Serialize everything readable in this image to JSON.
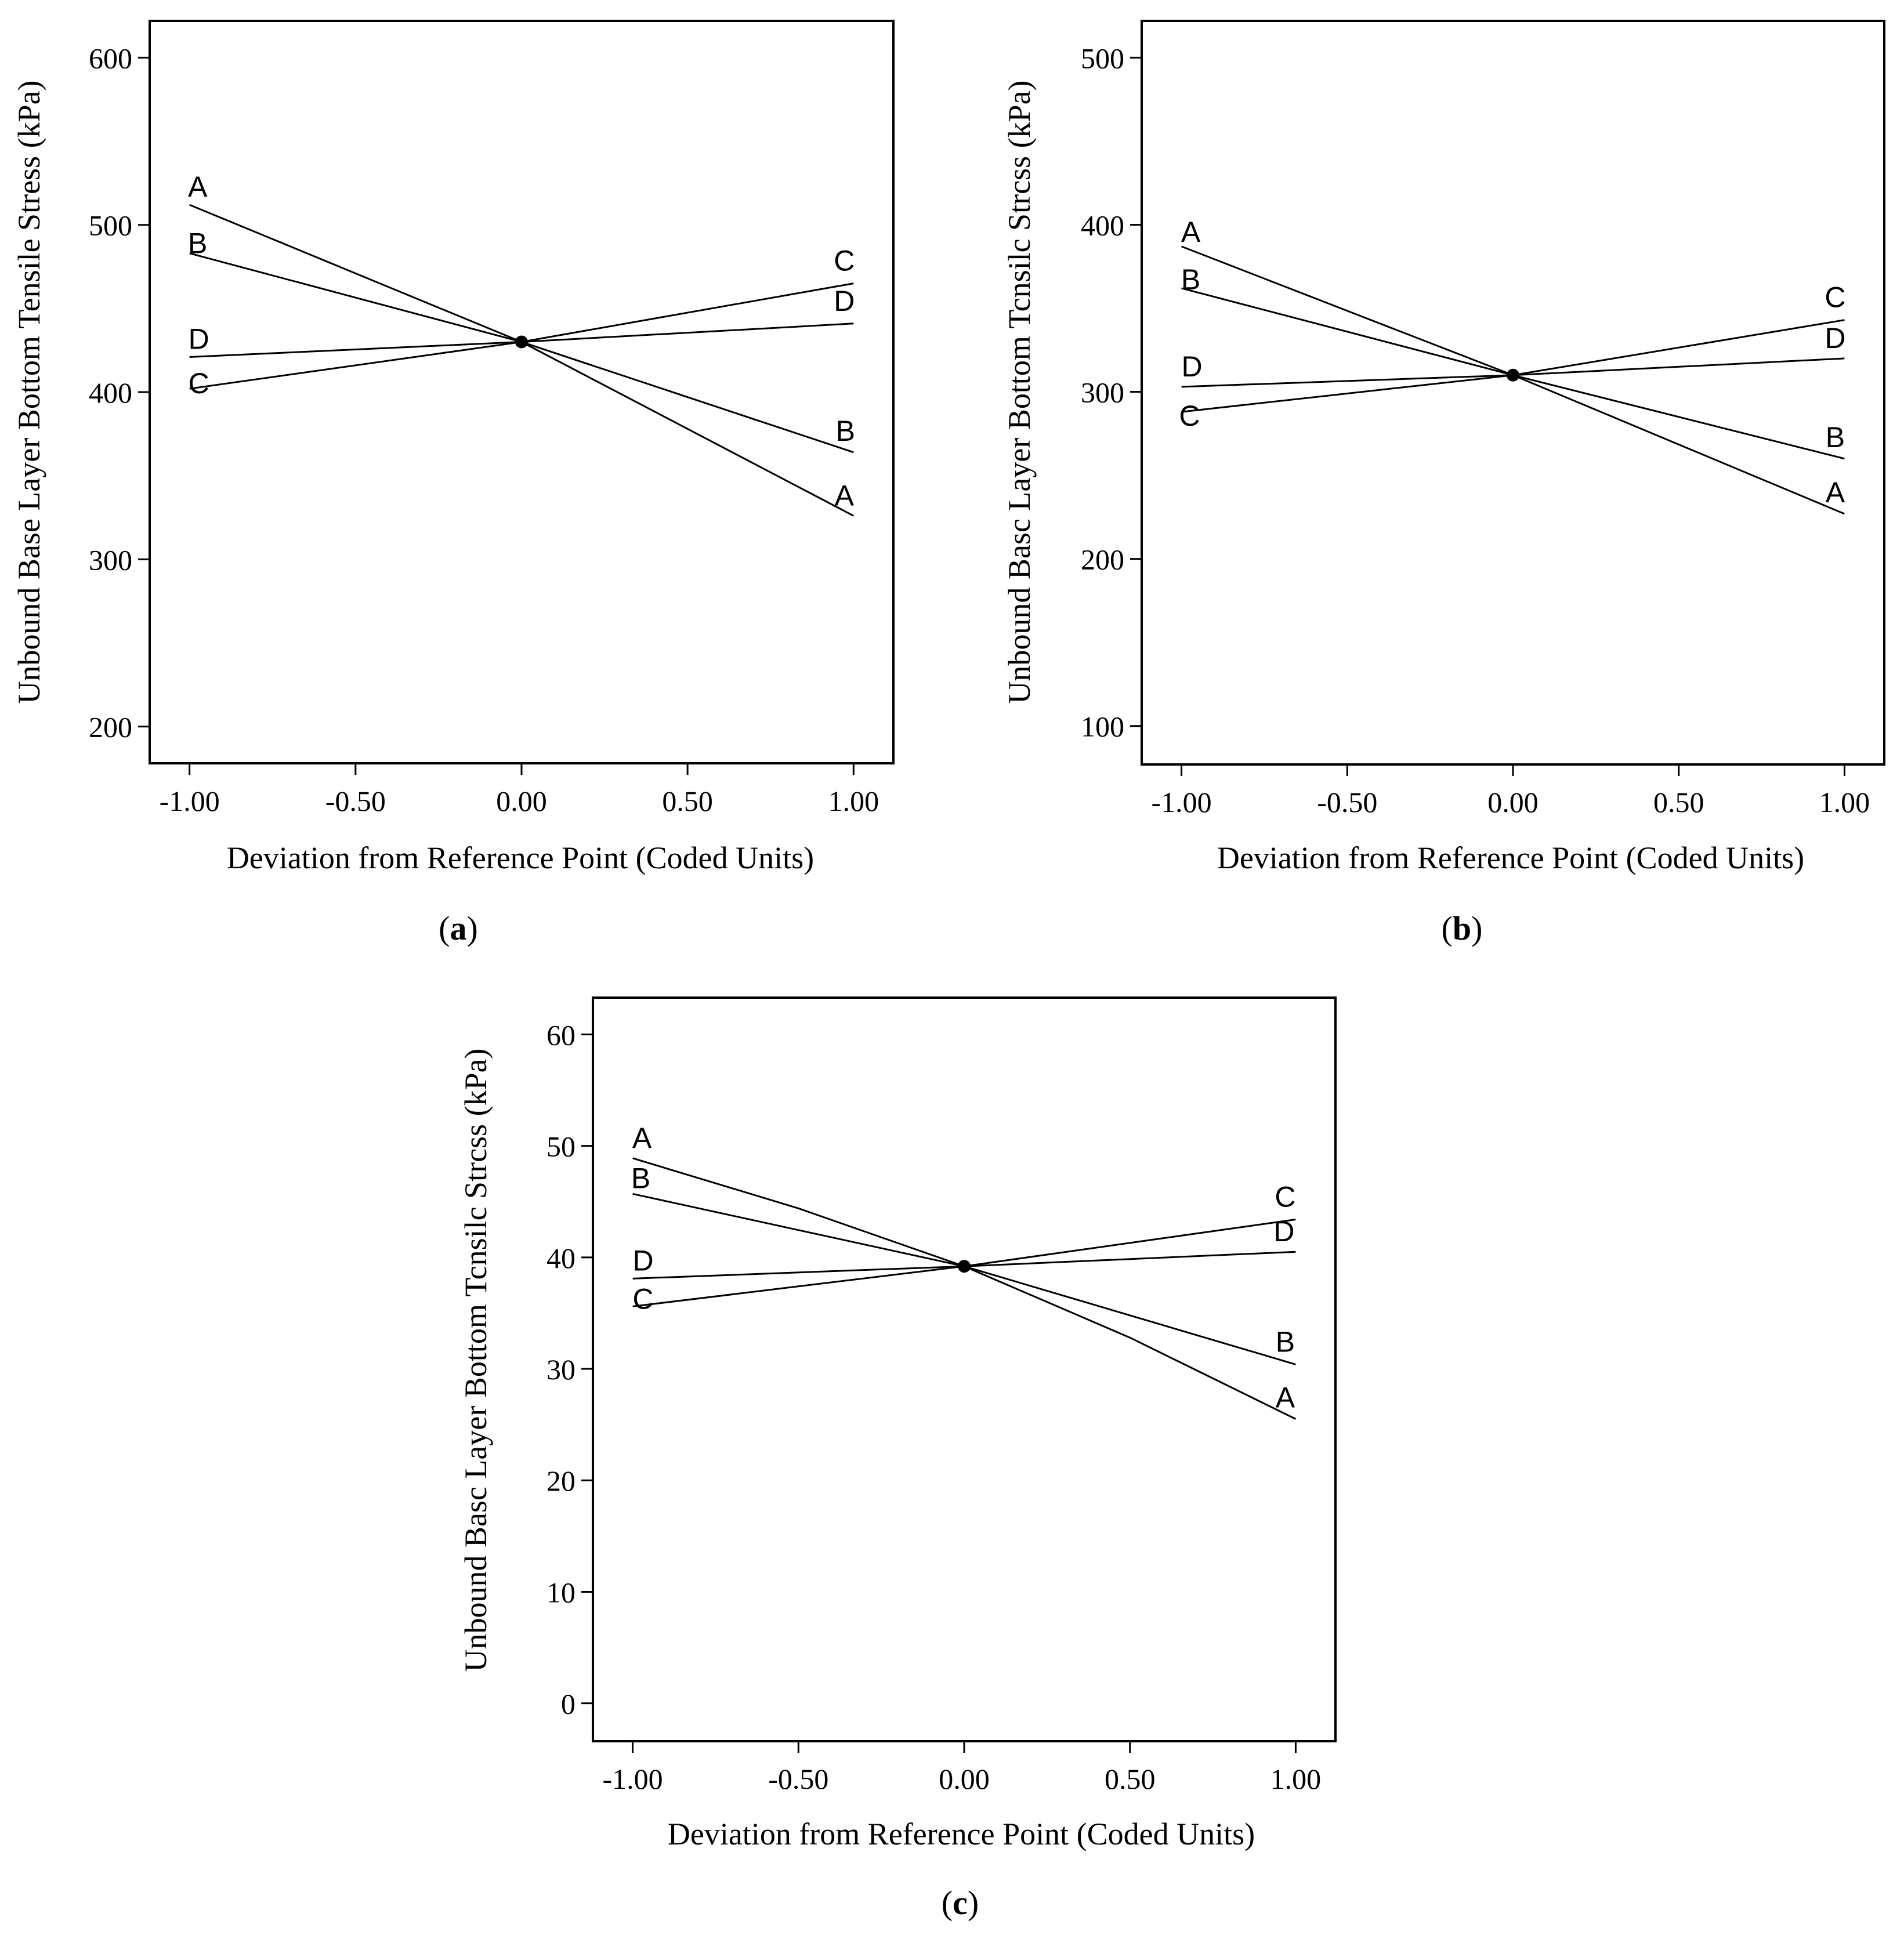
{
  "chart_data": [
    {
      "type": "line",
      "panel": "a",
      "caption": {
        "open": "(",
        "letter": "a",
        "close": ")"
      },
      "xlabel": "Deviation from Reference Point (Coded Units)",
      "ylabel": "Unbound Base Layer Bottom Tensile Stress (kPa)",
      "xlim": [
        -1.12,
        1.12
      ],
      "ylim": [
        178,
        622
      ],
      "xticks": [
        -1.0,
        -0.5,
        0.0,
        0.5,
        1.0
      ],
      "xtick_labels": [
        "-1.00",
        "-0.50",
        "0.00",
        "0.50",
        "1.00"
      ],
      "yticks": [
        200,
        300,
        400,
        500,
        600
      ],
      "ytick_labels": [
        "200",
        "300",
        "400",
        "500",
        "600"
      ],
      "reference_point": {
        "x": 0,
        "y": 430
      },
      "series": [
        {
          "name": "A",
          "x": [
            -1,
            0,
            1
          ],
          "y": [
            512,
            430,
            326
          ]
        },
        {
          "name": "B",
          "x": [
            -1,
            0,
            1
          ],
          "y": [
            483,
            430,
            364
          ]
        },
        {
          "name": "C",
          "x": [
            -1,
            0,
            1
          ],
          "y": [
            402,
            430,
            465
          ]
        },
        {
          "name": "D",
          "x": [
            -1,
            0,
            1
          ],
          "y": [
            421,
            430,
            441
          ]
        }
      ]
    },
    {
      "type": "line",
      "panel": "b",
      "caption": {
        "open": "(",
        "letter": "b",
        "close": ")"
      },
      "xlabel": "Deviation from Reference Point (Coded Units)",
      "ylabel": "Unbound Basc Layer Bottom Tcnsilc Strcss (kPa)",
      "xlim": [
        -1.12,
        1.12
      ],
      "ylim": [
        77,
        522
      ],
      "xticks": [
        -1.0,
        -0.5,
        0.0,
        0.5,
        1.0
      ],
      "xtick_labels": [
        "-1.00",
        "-0.50",
        "0.00",
        "0.50",
        "1.00"
      ],
      "yticks": [
        100,
        200,
        300,
        400,
        500
      ],
      "ytick_labels": [
        "100",
        "200",
        "300",
        "400",
        "500"
      ],
      "reference_point": {
        "x": 0,
        "y": 310
      },
      "series": [
        {
          "name": "A",
          "x": [
            -1,
            0,
            1
          ],
          "y": [
            387,
            310,
            227
          ]
        },
        {
          "name": "B",
          "x": [
            -1,
            0,
            1
          ],
          "y": [
            362,
            310,
            260
          ]
        },
        {
          "name": "C",
          "x": [
            -1,
            0,
            1
          ],
          "y": [
            288,
            310,
            343
          ]
        },
        {
          "name": "D",
          "x": [
            -1,
            0,
            1
          ],
          "y": [
            303,
            310,
            320
          ]
        }
      ]
    },
    {
      "type": "line",
      "panel": "c",
      "caption": {
        "open": "(",
        "letter": "c",
        "close": ")"
      },
      "xlabel": "Deviation from Reference Point (Coded Units)",
      "ylabel": "Unbound Basc Layer Bottom Tcnsilc Strcss (kPa)",
      "xlim": [
        -1.12,
        1.12
      ],
      "ylim": [
        -3.4,
        63.3
      ],
      "xticks": [
        -1.0,
        -0.5,
        0.0,
        0.5,
        1.0
      ],
      "xtick_labels": [
        "-1.00",
        "-0.50",
        "0.00",
        "0.50",
        "1.00"
      ],
      "yticks": [
        0,
        10,
        20,
        30,
        40,
        50,
        60
      ],
      "ytick_labels": [
        "0",
        "10",
        "20",
        "30",
        "40",
        "50",
        "60"
      ],
      "reference_point": {
        "x": 0,
        "y": 39.2
      },
      "series": [
        {
          "name": "A",
          "x": [
            -1,
            -0.5,
            0,
            0.5,
            1
          ],
          "y": [
            48.9,
            44.4,
            39.2,
            32.8,
            25.5
          ]
        },
        {
          "name": "B",
          "x": [
            -1,
            0,
            1
          ],
          "y": [
            45.7,
            39.2,
            30.4
          ]
        },
        {
          "name": "C",
          "x": [
            -1,
            0,
            1
          ],
          "y": [
            35.6,
            39.2,
            43.4
          ]
        },
        {
          "name": "D",
          "x": [
            -1,
            0,
            1
          ],
          "y": [
            38.1,
            39.2,
            40.5
          ]
        }
      ]
    }
  ]
}
